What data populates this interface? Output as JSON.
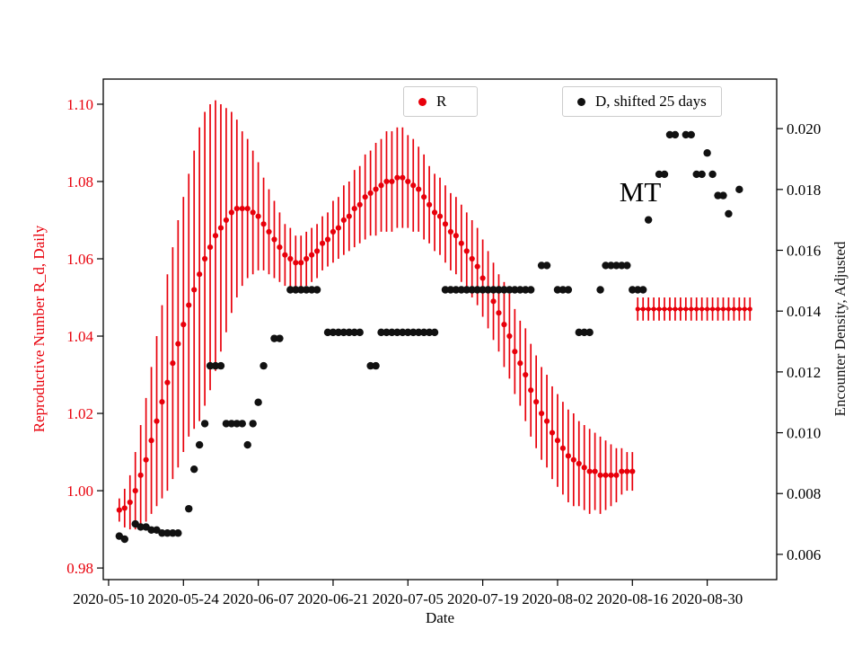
{
  "chart_data": {
    "type": "scatter",
    "title": "",
    "annotation": {
      "text": "MT"
    },
    "axes": {
      "x": {
        "label": "Date",
        "min": "2020-05-09",
        "max": "2020-09-12",
        "ticks": [
          "2020-05-10",
          "2020-05-24",
          "2020-06-07",
          "2020-06-21",
          "2020-07-05",
          "2020-07-19",
          "2020-08-02",
          "2020-08-16",
          "2020-08-30"
        ]
      },
      "y_left": {
        "label": "Reproductive Number R_d, Daily",
        "color": "#e8000b",
        "min": 0.977,
        "max": 1.1065,
        "ticks": [
          "0.98",
          "1.00",
          "1.02",
          "1.04",
          "1.06",
          "1.08",
          "1.10"
        ]
      },
      "y_right": {
        "label": "Encounter Density, Adjusted",
        "color": "#111111",
        "min": 0.00517,
        "max": 0.02163,
        "ticks": [
          "0.006",
          "0.008",
          "0.010",
          "0.012",
          "0.014",
          "0.016",
          "0.018",
          "0.020"
        ]
      }
    },
    "legend": [
      {
        "label": "R",
        "color": "#e8000b"
      },
      {
        "label": "D, shifted 25 days",
        "color": "#111111"
      }
    ],
    "series": [
      {
        "name": "R",
        "type": "scatter-err",
        "axis": "left",
        "color": "#e8000b",
        "marker_r": 3.1,
        "start": "2020-05-12",
        "values": [
          0.995,
          0.9955,
          0.997,
          1.0,
          1.004,
          1.008,
          1.013,
          1.018,
          1.023,
          1.028,
          1.033,
          1.038,
          1.043,
          1.048,
          1.052,
          1.056,
          1.06,
          1.063,
          1.066,
          1.068,
          1.07,
          1.072,
          1.073,
          1.073,
          1.073,
          1.072,
          1.071,
          1.069,
          1.067,
          1.065,
          1.063,
          1.061,
          1.06,
          1.059,
          1.059,
          1.06,
          1.061,
          1.062,
          1.064,
          1.065,
          1.067,
          1.068,
          1.07,
          1.071,
          1.073,
          1.074,
          1.076,
          1.077,
          1.078,
          1.079,
          1.08,
          1.08,
          1.081,
          1.081,
          1.08,
          1.079,
          1.078,
          1.076,
          1.074,
          1.072,
          1.071,
          1.069,
          1.067,
          1.066,
          1.064,
          1.062,
          1.06,
          1.058,
          1.055,
          1.052,
          1.049,
          1.046,
          1.043,
          1.04,
          1.036,
          1.033,
          1.03,
          1.026,
          1.023,
          1.02,
          1.018,
          1.015,
          1.013,
          1.011,
          1.009,
          1.008,
          1.007,
          1.006,
          1.005,
          1.005,
          1.004,
          1.004,
          1.004,
          1.004,
          1.005,
          1.005,
          1.005
        ],
        "errors": [
          0.003,
          0.005,
          0.007,
          0.01,
          0.013,
          0.016,
          0.019,
          0.022,
          0.025,
          0.028,
          0.03,
          0.032,
          0.033,
          0.034,
          0.036,
          0.038,
          0.038,
          0.037,
          0.035,
          0.032,
          0.029,
          0.026,
          0.023,
          0.02,
          0.018,
          0.016,
          0.014,
          0.012,
          0.011,
          0.01,
          0.009,
          0.008,
          0.008,
          0.007,
          0.007,
          0.007,
          0.007,
          0.007,
          0.007,
          0.007,
          0.008,
          0.008,
          0.009,
          0.009,
          0.01,
          0.01,
          0.011,
          0.011,
          0.012,
          0.012,
          0.013,
          0.013,
          0.013,
          0.013,
          0.012,
          0.012,
          0.011,
          0.011,
          0.01,
          0.01,
          0.01,
          0.01,
          0.01,
          0.01,
          0.01,
          0.01,
          0.01,
          0.01,
          0.01,
          0.01,
          0.01,
          0.01,
          0.011,
          0.011,
          0.011,
          0.011,
          0.012,
          0.012,
          0.012,
          0.012,
          0.012,
          0.012,
          0.012,
          0.012,
          0.012,
          0.012,
          0.011,
          0.011,
          0.011,
          0.01,
          0.01,
          0.009,
          0.008,
          0.007,
          0.006,
          0.005,
          0.005
        ]
      },
      {
        "name": "R forecast",
        "type": "const-err",
        "axis": "left",
        "color": "#e8000b",
        "marker_r": 2.6,
        "start": "2020-08-17",
        "end": "2020-09-07",
        "value": 1.047,
        "error": 0.003
      },
      {
        "name": "D, shifted 25 days",
        "type": "points",
        "axis": "right",
        "color": "#111111",
        "marker_r": 4.2,
        "points": [
          [
            "2020-05-12",
            0.0066
          ],
          [
            "2020-05-13",
            0.0065
          ],
          [
            "2020-05-15",
            0.007
          ],
          [
            "2020-05-16",
            0.0069
          ],
          [
            "2020-05-17",
            0.0069
          ],
          [
            "2020-05-18",
            0.0068
          ],
          [
            "2020-05-19",
            0.0068
          ],
          [
            "2020-05-20",
            0.0067
          ],
          [
            "2020-05-21",
            0.0067
          ],
          [
            "2020-05-22",
            0.0067
          ],
          [
            "2020-05-23",
            0.0067
          ],
          [
            "2020-05-25",
            0.0075
          ],
          [
            "2020-05-26",
            0.0088
          ],
          [
            "2020-05-27",
            0.0096
          ],
          [
            "2020-05-28",
            0.0103
          ],
          [
            "2020-05-29",
            0.0122
          ],
          [
            "2020-05-30",
            0.0122
          ],
          [
            "2020-05-31",
            0.0122
          ],
          [
            "2020-06-01",
            0.0103
          ],
          [
            "2020-06-02",
            0.0103
          ],
          [
            "2020-06-03",
            0.0103
          ],
          [
            "2020-06-04",
            0.0103
          ],
          [
            "2020-06-05",
            0.0096
          ],
          [
            "2020-06-06",
            0.0103
          ],
          [
            "2020-06-07",
            0.011
          ],
          [
            "2020-06-08",
            0.0122
          ],
          [
            "2020-06-10",
            0.0131
          ],
          [
            "2020-06-11",
            0.0131
          ],
          [
            "2020-06-13",
            0.0147
          ],
          [
            "2020-06-14",
            0.0147
          ],
          [
            "2020-06-15",
            0.0147
          ],
          [
            "2020-06-16",
            0.0147
          ],
          [
            "2020-06-17",
            0.0147
          ],
          [
            "2020-06-18",
            0.0147
          ],
          [
            "2020-06-20",
            0.0133
          ],
          [
            "2020-06-21",
            0.0133
          ],
          [
            "2020-06-22",
            0.0133
          ],
          [
            "2020-06-23",
            0.0133
          ],
          [
            "2020-06-24",
            0.0133
          ],
          [
            "2020-06-25",
            0.0133
          ],
          [
            "2020-06-26",
            0.0133
          ],
          [
            "2020-06-28",
            0.0122
          ],
          [
            "2020-06-29",
            0.0122
          ],
          [
            "2020-06-30",
            0.0133
          ],
          [
            "2020-07-01",
            0.0133
          ],
          [
            "2020-07-02",
            0.0133
          ],
          [
            "2020-07-03",
            0.0133
          ],
          [
            "2020-07-04",
            0.0133
          ],
          [
            "2020-07-05",
            0.0133
          ],
          [
            "2020-07-06",
            0.0133
          ],
          [
            "2020-07-07",
            0.0133
          ],
          [
            "2020-07-08",
            0.0133
          ],
          [
            "2020-07-09",
            0.0133
          ],
          [
            "2020-07-10",
            0.0133
          ],
          [
            "2020-07-12",
            0.0147
          ],
          [
            "2020-07-13",
            0.0147
          ],
          [
            "2020-07-14",
            0.0147
          ],
          [
            "2020-07-15",
            0.0147
          ],
          [
            "2020-07-16",
            0.0147
          ],
          [
            "2020-07-17",
            0.0147
          ],
          [
            "2020-07-18",
            0.0147
          ],
          [
            "2020-07-19",
            0.0147
          ],
          [
            "2020-07-20",
            0.0147
          ],
          [
            "2020-07-21",
            0.0147
          ],
          [
            "2020-07-22",
            0.0147
          ],
          [
            "2020-07-23",
            0.0147
          ],
          [
            "2020-07-24",
            0.0147
          ],
          [
            "2020-07-25",
            0.0147
          ],
          [
            "2020-07-26",
            0.0147
          ],
          [
            "2020-07-27",
            0.0147
          ],
          [
            "2020-07-28",
            0.0147
          ],
          [
            "2020-07-30",
            0.0155
          ],
          [
            "2020-07-31",
            0.0155
          ],
          [
            "2020-08-02",
            0.0147
          ],
          [
            "2020-08-03",
            0.0147
          ],
          [
            "2020-08-04",
            0.0147
          ],
          [
            "2020-08-06",
            0.0133
          ],
          [
            "2020-08-07",
            0.0133
          ],
          [
            "2020-08-08",
            0.0133
          ],
          [
            "2020-08-10",
            0.0147
          ],
          [
            "2020-08-11",
            0.0155
          ],
          [
            "2020-08-12",
            0.0155
          ],
          [
            "2020-08-13",
            0.0155
          ],
          [
            "2020-08-14",
            0.0155
          ],
          [
            "2020-08-15",
            0.0155
          ],
          [
            "2020-08-16",
            0.0147
          ],
          [
            "2020-08-17",
            0.0147
          ],
          [
            "2020-08-18",
            0.0147
          ],
          [
            "2020-08-19",
            0.017
          ],
          [
            "2020-08-21",
            0.0185
          ],
          [
            "2020-08-22",
            0.0185
          ],
          [
            "2020-08-23",
            0.0198
          ],
          [
            "2020-08-24",
            0.0198
          ],
          [
            "2020-08-26",
            0.0198
          ],
          [
            "2020-08-27",
            0.0198
          ],
          [
            "2020-08-28",
            0.0185
          ],
          [
            "2020-08-29",
            0.0185
          ],
          [
            "2020-08-30",
            0.0192
          ],
          [
            "2020-08-31",
            0.0185
          ],
          [
            "2020-09-01",
            0.0178
          ],
          [
            "2020-09-02",
            0.0178
          ],
          [
            "2020-09-03",
            0.0172
          ],
          [
            "2020-09-05",
            0.018
          ]
        ]
      }
    ]
  }
}
